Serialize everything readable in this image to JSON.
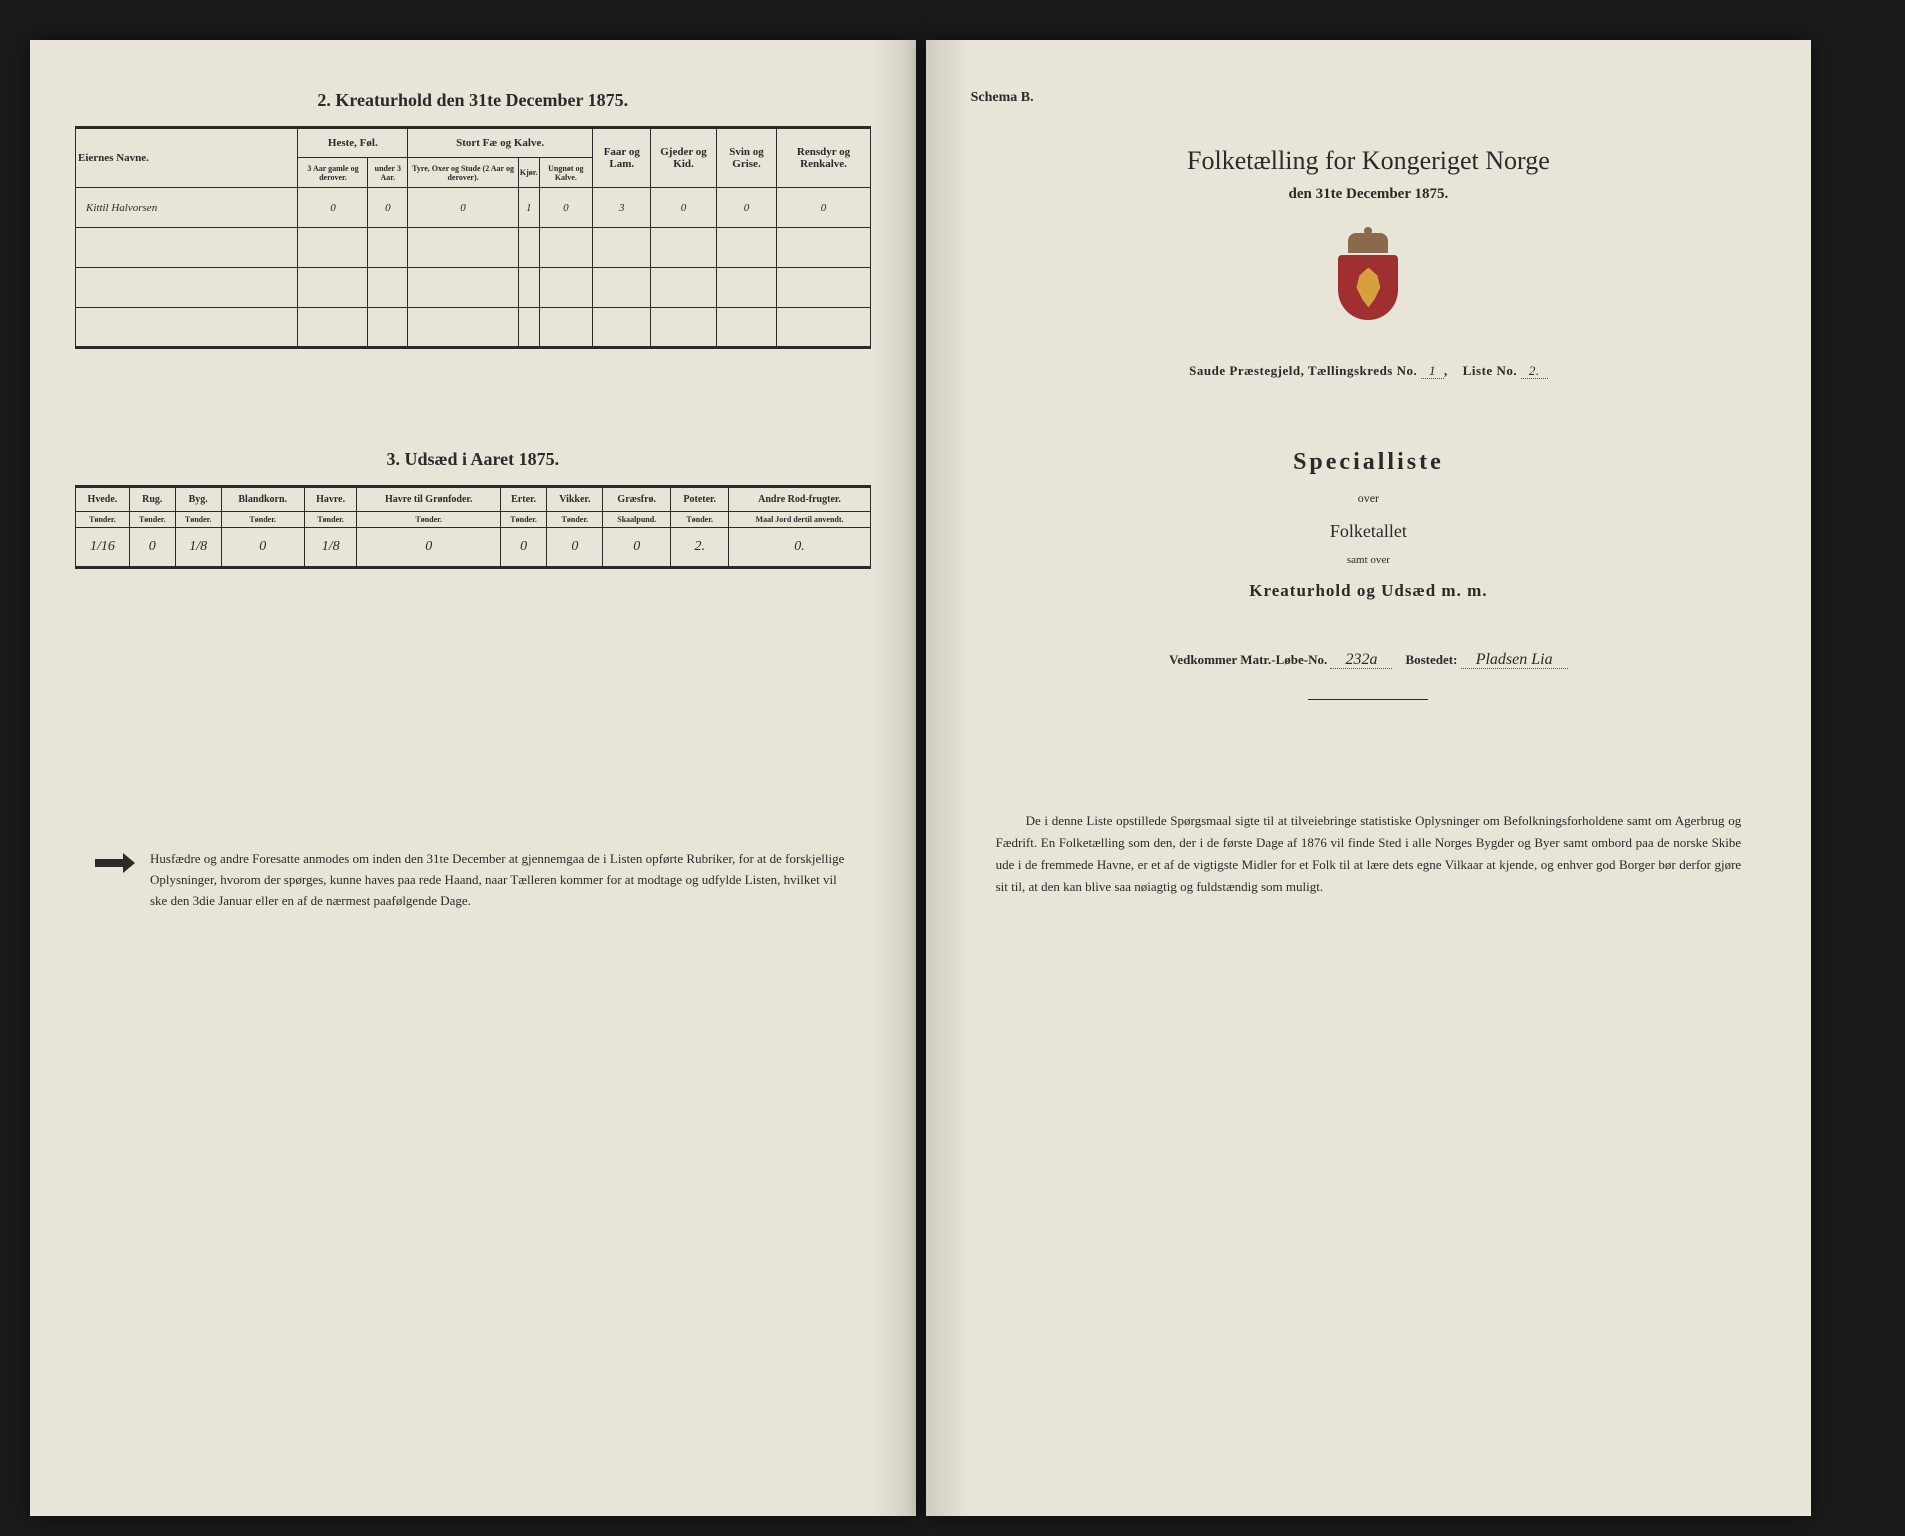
{
  "left": {
    "section2": {
      "title": "2. Kreaturhold den 31te December 1875.",
      "headers_main": [
        "Eiernes Navne.",
        "Heste, Føl.",
        "Stort Fæ og Kalve.",
        "Faar og Lam.",
        "Gjeder og Kid.",
        "Svin og Grise.",
        "Rensdyr og Renkalve."
      ],
      "headers_sub_heste": [
        "3 Aar gamle og derover.",
        "under 3 Aar."
      ],
      "headers_sub_fae": [
        "Tyre, Oxer og Stude (2 Aar og derover).",
        "Kjør.",
        "Ungnøt og Kalve."
      ],
      "row1": {
        "name": "Kittil Halvorsen",
        "vals": [
          "0",
          "0",
          "0",
          "1",
          "0",
          "3",
          "0",
          "0",
          "0"
        ]
      }
    },
    "section3": {
      "title": "3. Udsæd i Aaret 1875.",
      "headers": [
        "Hvede.",
        "Rug.",
        "Byg.",
        "Blandkorn.",
        "Havre.",
        "Havre til Grønfoder.",
        "Erter.",
        "Vikker.",
        "Græsfrø.",
        "Poteter.",
        "Andre Rod-frugter."
      ],
      "sub_headers": [
        "Tønder.",
        "Tønder.",
        "Tønder.",
        "Tønder.",
        "Tønder.",
        "Tønder.",
        "Tønder.",
        "Tønder.",
        "Skaalpund.",
        "Tønder.",
        "Maal Jord dertil anvendt."
      ],
      "row": [
        "1/16",
        "0",
        "1/8",
        "0",
        "1/8",
        "0",
        "0",
        "0",
        "0",
        "2.",
        "0."
      ]
    },
    "footnote": "Husfædre og andre Foresatte anmodes om inden den 31te December at gjennemgaa de i Listen opførte Rubriker, for at de forskjellige Oplysninger, hvorom der spørges, kunne haves paa rede Haand, naar Tælleren kommer for at modtage og udfylde Listen, hvilket vil ske den 3die Januar eller en af de nærmest paafølgende Dage."
  },
  "right": {
    "schema": "Schema B.",
    "main_title": "Folketælling for Kongeriget Norge",
    "date": "den 31te December 1875.",
    "parish_label": "Saude Præstegjeld, Tællingskreds No.",
    "parish_no": "1",
    "liste_label": "Liste No.",
    "liste_no": "2.",
    "specialliste": "Specialliste",
    "over": "over",
    "folketallet": "Folketallet",
    "samt_over": "samt over",
    "kreatur": "Kreaturhold og Udsæd m. m.",
    "matr_label": "Vedkommer Matr.-Løbe-No.",
    "matr_no": "232a",
    "bosted_label": "Bostedet:",
    "bosted": "Pladsen Lia",
    "bottom": "De i denne Liste opstillede Spørgsmaal sigte til at tilveiebringe statistiske Oplysninger om Befolkningsforholdene samt om Agerbrug og Fædrift. En Folketælling som den, der i de første Dage af 1876 vil finde Sted i alle Norges Bygder og Byer samt ombord paa de norske Skibe ude i de fremmede Havne, er et af de vigtigste Midler for et Folk til at lære dets egne Vilkaar at kjende, og enhver god Borger bør derfor gjøre sit til, at den kan blive saa nøiagtig og fuldstændig som muligt."
  }
}
